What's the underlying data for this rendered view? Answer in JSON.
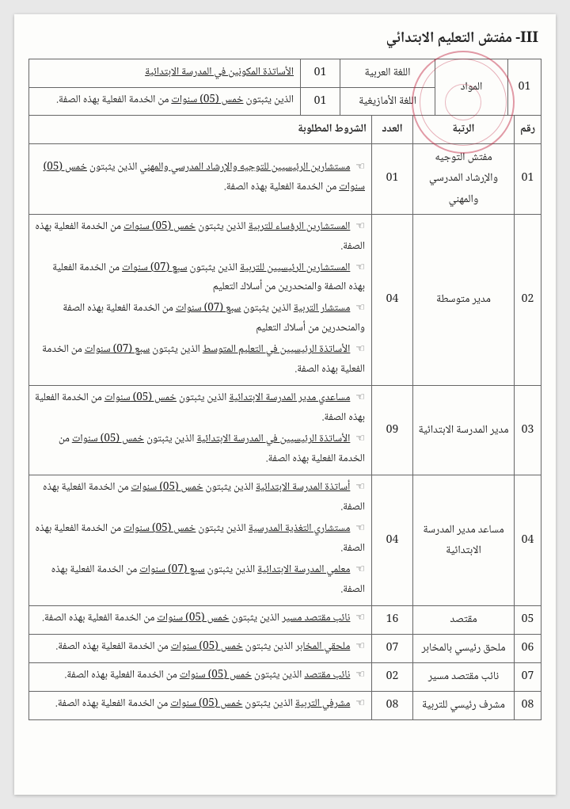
{
  "title": "III- مفتش التعليم الابتدائي",
  "table1": {
    "row_num": "01",
    "subjects_label": "المواد",
    "rows": [
      {
        "lang": "اللغة العربية",
        "count": "01",
        "cond": "الأساتذة المكونين في المدرسة الابتدائية"
      },
      {
        "lang": "اللغة الأمازيغية",
        "count": "01",
        "cond": "الذين يثبتون خمس (05) سنوات من الخدمة الفعلية بهذه الصفة."
      }
    ]
  },
  "headers": {
    "num": "رقم",
    "rank": "الرتبة",
    "count": "العدد",
    "conditions": "الشروط المطلوبة"
  },
  "rows": [
    {
      "num": "01",
      "rank": "مفتش التوجيه والإرشاد المدرسي والمهني",
      "count": "01",
      "conditions": [
        "☜ مستشارين الرئيسيين للتوجيه والإرشاد المدرسي والمهني الذين يثبتون خمس (05) سنوات من الخدمة الفعلية بهذه الصفة."
      ]
    },
    {
      "num": "02",
      "rank": "مدير متوسطة",
      "count": "04",
      "conditions": [
        "☜ المستشارين الرؤساء للتربية الذين يثبتون خمس (05) سنوات من الخدمة الفعلية بهذه الصفة.",
        "☜ المستشارين الرئيسيين للتربية الذين يثبتون سبع (07) سنوات من الخدمة الفعلية بهذه الصفة والمنحدرين من أسلاك التعليم",
        "☜ مستشار التربية الذين يثبتون سبع (07) سنوات من الخدمة الفعلية بهذه الصفة والمنحدرين من أسلاك التعليم",
        "☜ الأساتذة الرئيسيين في التعليم المتوسط الذين يثبتون سبع (07) سنوات من الخدمة الفعلية بهذه الصفة."
      ]
    },
    {
      "num": "03",
      "rank": "مدير المدرسة الابتدائية",
      "count": "09",
      "conditions": [
        "☜ مساعدي مدير المدرسة الابتدائية الذين يثبتون خمس (05) سنوات من الخدمة الفعلية بهذه الصفة.",
        "☜ الأساتذة الرئيسيين في المدرسة الابتدائية الذين يثبتون خمس (05) سنوات من الخدمة الفعلية بهذه الصفة."
      ]
    },
    {
      "num": "04",
      "rank": "مساعد مدير المدرسة الابتدائية",
      "count": "04",
      "conditions": [
        "☜ أساتذة المدرسة الابتدائية الذين يثبتون خمس (05) سنوات من الخدمة الفعلية بهذه الصفة.",
        "☜ مستشاري التغذية المدرسية الذين يثبتون خمس (05) سنوات من الخدمة الفعلية بهذه الصفة.",
        "☜ معلمي المدرسة الابتدائية الذين يثبتون سبع (07) سنوات من الخدمة الفعلية بهذه الصفة."
      ]
    },
    {
      "num": "05",
      "rank": "مقتصد",
      "count": "16",
      "conditions": [
        "☜ نائب مقتصد مسير الذين يثبتون خمس (05) سنوات من الخدمة الفعلية بهذه الصفة."
      ]
    },
    {
      "num": "06",
      "rank": "ملحق رئيسي بالمخابر",
      "count": "07",
      "conditions": [
        "☜ ملحقي المخابر الذين يثبتون خمس (05) سنوات من الخدمة الفعلية بهذه الصفة."
      ]
    },
    {
      "num": "07",
      "rank": "نائب مقتصد مسير",
      "count": "02",
      "conditions": [
        "☜ نائب مقتصد الذين يثبتون خمس (05) سنوات من الخدمة الفعلية بهذه الصفة."
      ]
    },
    {
      "num": "08",
      "rank": "مشرف رئيسي للتربية",
      "count": "08",
      "conditions": [
        "☜ مشرفي التربية الذين يثبتون خمس (05) سنوات من الخدمة الفعلية بهذه الصفة."
      ]
    }
  ],
  "underline_phrases": [
    "الأساتذة المكونين في المدرسة الابتدائية",
    "خمس (05) سنوات",
    "مستشارين الرئيسيين للتوجيه والإرشاد المدرسي والمهني",
    "المستشارين الرؤساء للتربية",
    "المستشارين الرئيسيين للتربية",
    "سبع (07) سنوات",
    "مستشار التربية",
    "الأساتذة الرئيسيين في التعليم المتوسط",
    "سبع (07)",
    "سنوات",
    "مساعدي مدير المدرسة الابتدائية",
    "خمس (05)",
    "الأساتذة الرئيسيين في المدرسة الابتدائية",
    "(05) سنوات",
    "أساتذة المدرسة الابتدائية",
    "مستشاري التغذية المدرسية",
    "معلمي المدرسة الابتدائية",
    "نائب مقتصد مسير",
    "ملحقي المخابر",
    "نائب مقتصد",
    "مشرفي التربية"
  ]
}
